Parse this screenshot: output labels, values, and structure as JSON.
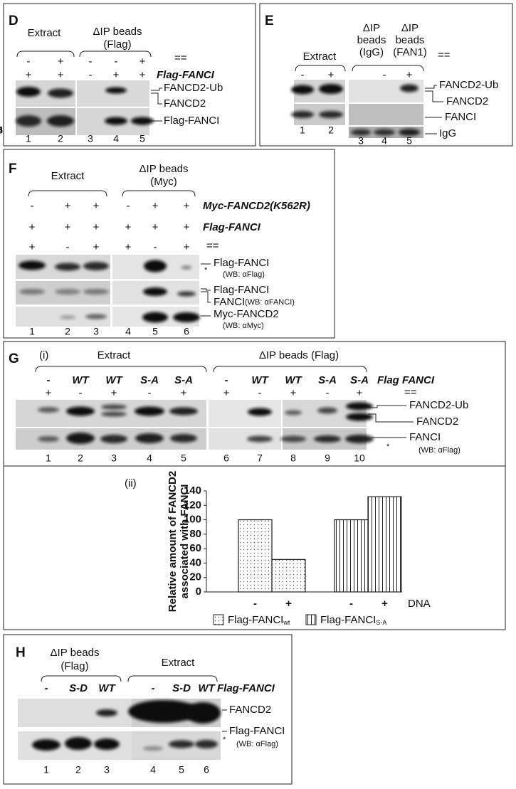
{
  "panels": {
    "D": {
      "label": "D",
      "extract": "Extract",
      "beads": [
        "ΔIP beads",
        "(Flag)"
      ],
      "signs1": [
        "-",
        "+",
        "-",
        "-",
        "+"
      ],
      "signs2": [
        "+",
        "+",
        "-",
        "+",
        "+"
      ],
      "row1_label": "==",
      "row2_label": "Flag-FANCI",
      "bands": [
        "FANCD2-Ub",
        "FANCD2",
        "Flag-FANCI"
      ],
      "lanes": [
        1,
        2,
        3,
        4,
        5
      ]
    },
    "E": {
      "label": "E",
      "extract": "Extract",
      "beads_igg": [
        "ΔIP",
        "beads",
        "(IgG)"
      ],
      "beads_fan1": [
        "ΔIP",
        "beads",
        "(FAN1)"
      ],
      "signs": [
        "-",
        "+",
        "-",
        "+"
      ],
      "row_label": "==",
      "bands": [
        "FANCD2-Ub",
        "FANCD2",
        "FANCI",
        "IgG"
      ],
      "lanes": [
        1,
        2,
        3,
        4,
        5
      ]
    },
    "F": {
      "label": "F",
      "extract": "Extract",
      "beads": [
        "ΔIP beads",
        "(Myc)"
      ],
      "signs1": [
        "-",
        "+",
        "+",
        "-",
        "+",
        "+"
      ],
      "signs2": [
        "+",
        "+",
        "+",
        "+",
        "+",
        "+"
      ],
      "signs3": [
        "+",
        "-",
        "+",
        "+",
        "-",
        "+"
      ],
      "row_labels": [
        "Myc-FANCD2(K562R)",
        "Flag-FANCI",
        "=="
      ],
      "bands": [
        "Flag-FANCI",
        "(WB: αFlag)",
        "Flag-FANCI",
        "FANCI",
        "(WB: αFANCI)",
        "Myc-FANCD2",
        "(WB: αMyc)"
      ],
      "star": "*",
      "lanes": [
        1,
        2,
        3,
        4,
        5,
        6
      ]
    },
    "G": {
      "label": "G",
      "sub_i": "(i)",
      "sub_ii": "(ii)",
      "extract": "Extract",
      "beads": "ΔIP beads  (Flag)",
      "signs1": [
        "-",
        "WT",
        "WT",
        "S-A",
        "S-A",
        "-",
        "WT",
        "WT",
        "S-A",
        "S-A"
      ],
      "signs2": [
        "+",
        "-",
        "+",
        "-",
        "+",
        "+",
        "-",
        "+",
        "-",
        "+"
      ],
      "row_labels": [
        "Flag FANCI",
        "=="
      ],
      "bands": [
        "FANCD2-Ub",
        "FANCD2",
        "FANCI",
        "(WB: αFlag)"
      ],
      "star": "*",
      "lanes": [
        1,
        2,
        3,
        4,
        5,
        6,
        7,
        8,
        9,
        10
      ]
    },
    "H": {
      "label": "H",
      "beads": [
        "ΔIP beads",
        "(Flag)"
      ],
      "extract": "Extract",
      "signs": [
        "-",
        "S-D",
        "WT",
        "-",
        "S-D",
        "WT"
      ],
      "row_label": "Flag-FANCI",
      "bands": [
        "FANCD2",
        "Flag-FANCI",
        "(WB: αFlag)"
      ],
      "star": "*",
      "lanes": [
        1,
        2,
        3,
        4,
        5,
        6
      ]
    }
  },
  "chart_data": {
    "type": "bar",
    "y_label": [
      "Relative amount of FANCD2",
      "associated with FANCI"
    ],
    "x_label": "DNA",
    "categories": [
      "-",
      "+"
    ],
    "series": [
      {
        "name": "Flag-FANCI",
        "name_subscript": "wt",
        "pattern": "dots",
        "values": [
          100,
          45
        ]
      },
      {
        "name": "Flag-FANCI",
        "name_subscript": "S-A",
        "pattern": "vlines",
        "values": [
          100,
          132
        ]
      }
    ],
    "ylim": [
      0,
      140
    ],
    "yticks": [
      0,
      20,
      40,
      60,
      80,
      100,
      120,
      140
    ]
  }
}
